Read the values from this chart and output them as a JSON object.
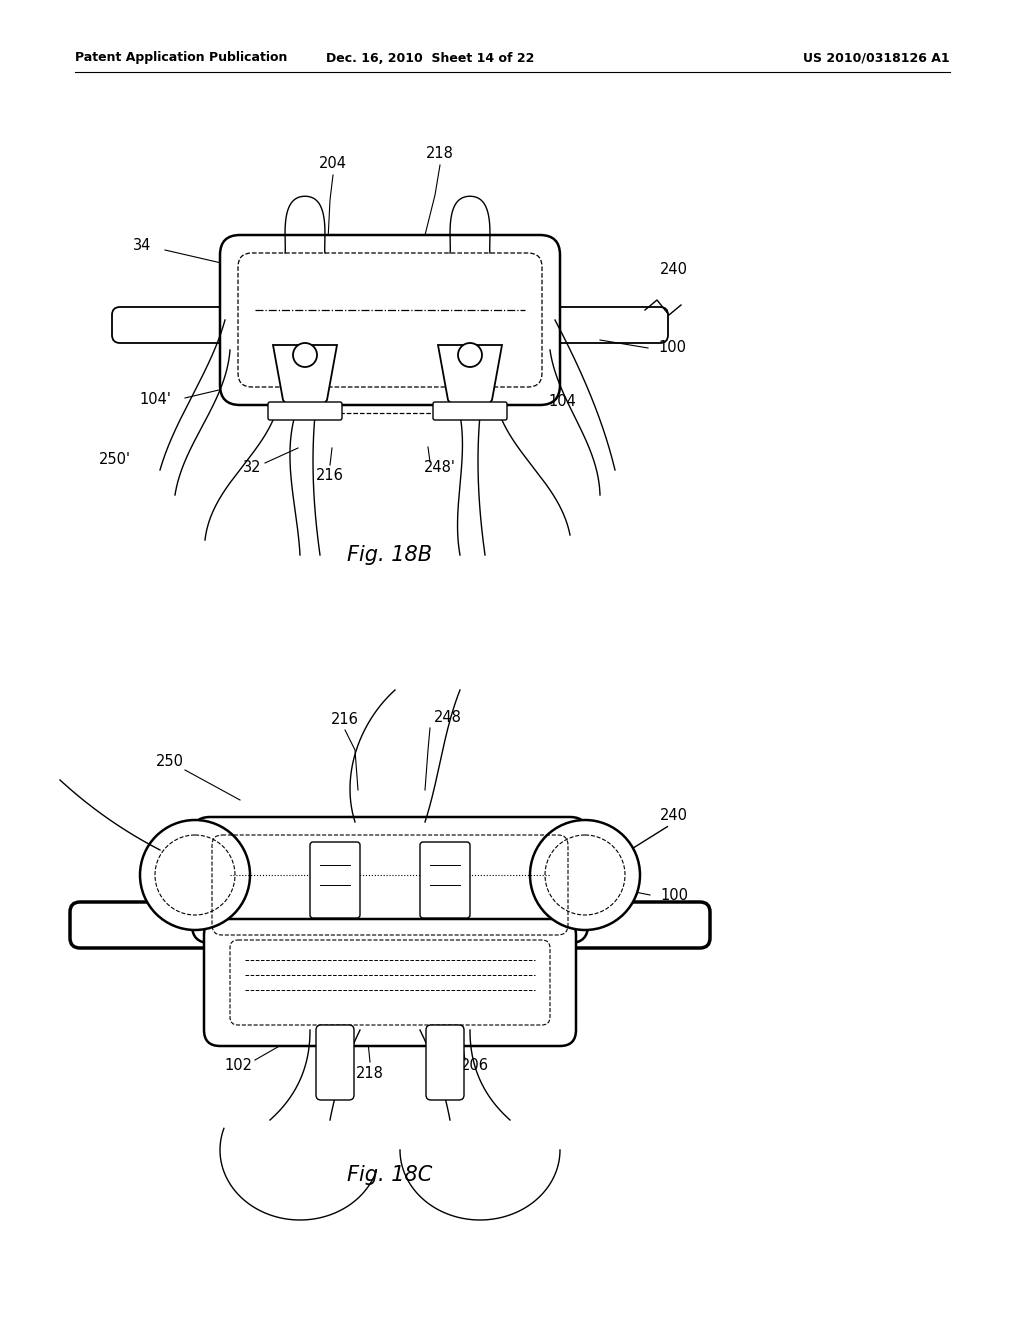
{
  "bg_color": "#ffffff",
  "line_color": "#000000",
  "header_left": "Patent Application Publication",
  "header_mid": "Dec. 16, 2010  Sheet 14 of 22",
  "header_right": "US 2010/0318126 A1",
  "fig18b_caption": "Fig. 18B",
  "fig18c_caption": "Fig. 18C"
}
